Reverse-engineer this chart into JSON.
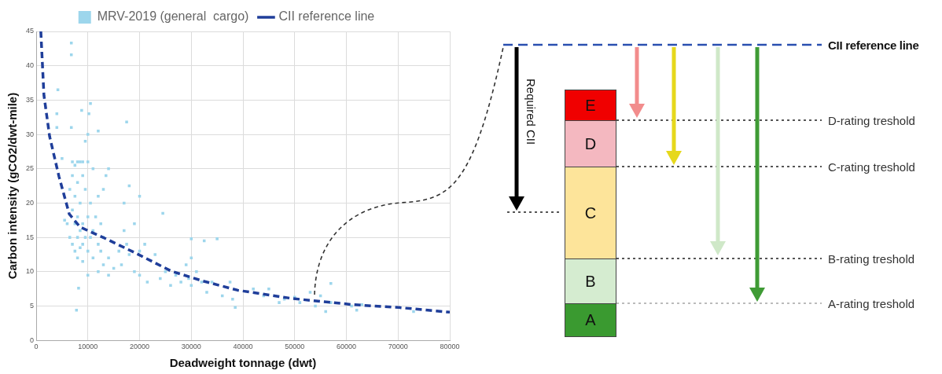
{
  "chart_data": [
    {
      "type": "scatter",
      "xlabel": "Deadweight tonnage (dwt)",
      "ylabel": "Carbon intensity (gCO2/dwt-mile)",
      "xlim": [
        0,
        80000
      ],
      "xticks": [
        0,
        10000,
        20000,
        30000,
        40000,
        50000,
        60000,
        70000,
        80000
      ],
      "ylim": [
        0,
        45
      ],
      "yticks": [
        0,
        5,
        10,
        15,
        20,
        25,
        30,
        35,
        40,
        45
      ],
      "grid": true,
      "legend": "top",
      "series": [
        {
          "name": "MRV-2019 (general  cargo)",
          "type": "scatter",
          "marker": "square",
          "color": "#9dd6ec",
          "x": [
            6000,
            6500,
            6500,
            7000,
            7000,
            7000,
            7000,
            7500,
            7500,
            7500,
            7500,
            8000,
            8000,
            8000,
            8000,
            8000,
            8500,
            8500,
            8500,
            8500,
            9000,
            9000,
            9000,
            9000,
            9000,
            9500,
            9500,
            9500,
            10000,
            10000,
            10000,
            10000,
            10000,
            10500,
            10500,
            11000,
            11000,
            11000,
            11500,
            12000,
            12000,
            12000,
            12000,
            12500,
            12500,
            13000,
            13000,
            13000,
            14000,
            14000,
            14000,
            15000,
            16000,
            16500,
            17000,
            17000,
            17500,
            17500,
            18000,
            18000,
            19000,
            19000,
            20000,
            20000,
            20000,
            21000,
            21500,
            23000,
            24500,
            24000,
            25000,
            26000,
            27000,
            28000,
            29000,
            29500,
            30000,
            30000,
            30000,
            31000,
            32000,
            32500,
            33000,
            34000,
            35000,
            36000,
            37500,
            38000,
            38500,
            42000,
            44000,
            45000,
            47000,
            48000,
            50000,
            51000,
            53000,
            54000,
            55000,
            56000,
            57000,
            57000,
            61000,
            62000,
            63000,
            73000,
            4000,
            4000,
            4200,
            5000,
            5500,
            6800,
            6800,
            6800,
            7800,
            8200,
            8800,
            10500,
            10200,
            13500
          ],
          "values": [
            17,
            15,
            22,
            26,
            24,
            19,
            14,
            25.5,
            21,
            17,
            13,
            26,
            23,
            18,
            15,
            12,
            26,
            20,
            16,
            13.5,
            26,
            24,
            17,
            14,
            11.5,
            29,
            22,
            15,
            30,
            26,
            18,
            13,
            9.5,
            20,
            15,
            25,
            16,
            12,
            18,
            30.5,
            21,
            14,
            10,
            17,
            13,
            22,
            15,
            11,
            25,
            12,
            9.5,
            10.5,
            13,
            11,
            20,
            16,
            14,
            31.8,
            12.5,
            22.5,
            17,
            10,
            21,
            13,
            9.5,
            14,
            8.5,
            12.5,
            18.5,
            9,
            10,
            8,
            9.5,
            8.5,
            11,
            9,
            14.8,
            12,
            8,
            10,
            8.5,
            14.5,
            7,
            8.5,
            14.8,
            6.5,
            8.5,
            6,
            4.8,
            7.5,
            6.5,
            7.5,
            5.5,
            6,
            6.3,
            5.5,
            7,
            5,
            6.5,
            4.2,
            8.3,
            5.5,
            5,
            4.4,
            5.2,
            4.2,
            33,
            31,
            36.5,
            26.5,
            17.5,
            43.3,
            41.6,
            31,
            4.4,
            7.6,
            33.5,
            34.5,
            33,
            24
          ]
        },
        {
          "name": "CII reference line",
          "type": "line",
          "line_style": "dashed",
          "color": "#1f3e9a",
          "x": [
            900,
            1500,
            2600,
            4400,
            6400,
            8500,
            13200,
            19000,
            26100,
            32000,
            39000,
            49500,
            61300,
            70000,
            80000
          ],
          "values": [
            45,
            35.7,
            29.7,
            23.9,
            18.4,
            16.5,
            14.9,
            12.8,
            10.1,
            8.7,
            7.3,
            6.1,
            5.2,
            4.8,
            4.1
          ]
        }
      ]
    },
    {
      "type": "other",
      "annotations": [
        "CII reference line",
        "D-rating treshold",
        "C-rating treshold",
        "B-rating treshold",
        "A-rating treshold",
        "Required CII",
        "E",
        "D",
        "C",
        "B",
        "A"
      ]
    }
  ]
}
